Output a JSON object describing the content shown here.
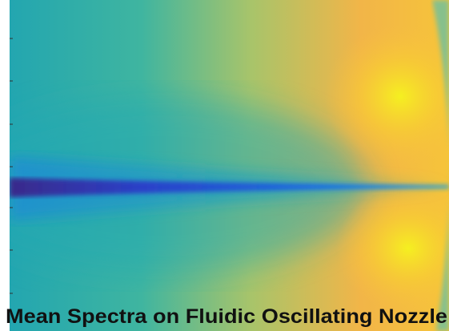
{
  "caption": "Mean Spectra on Fluidic Oscillating Nozzle"
}
